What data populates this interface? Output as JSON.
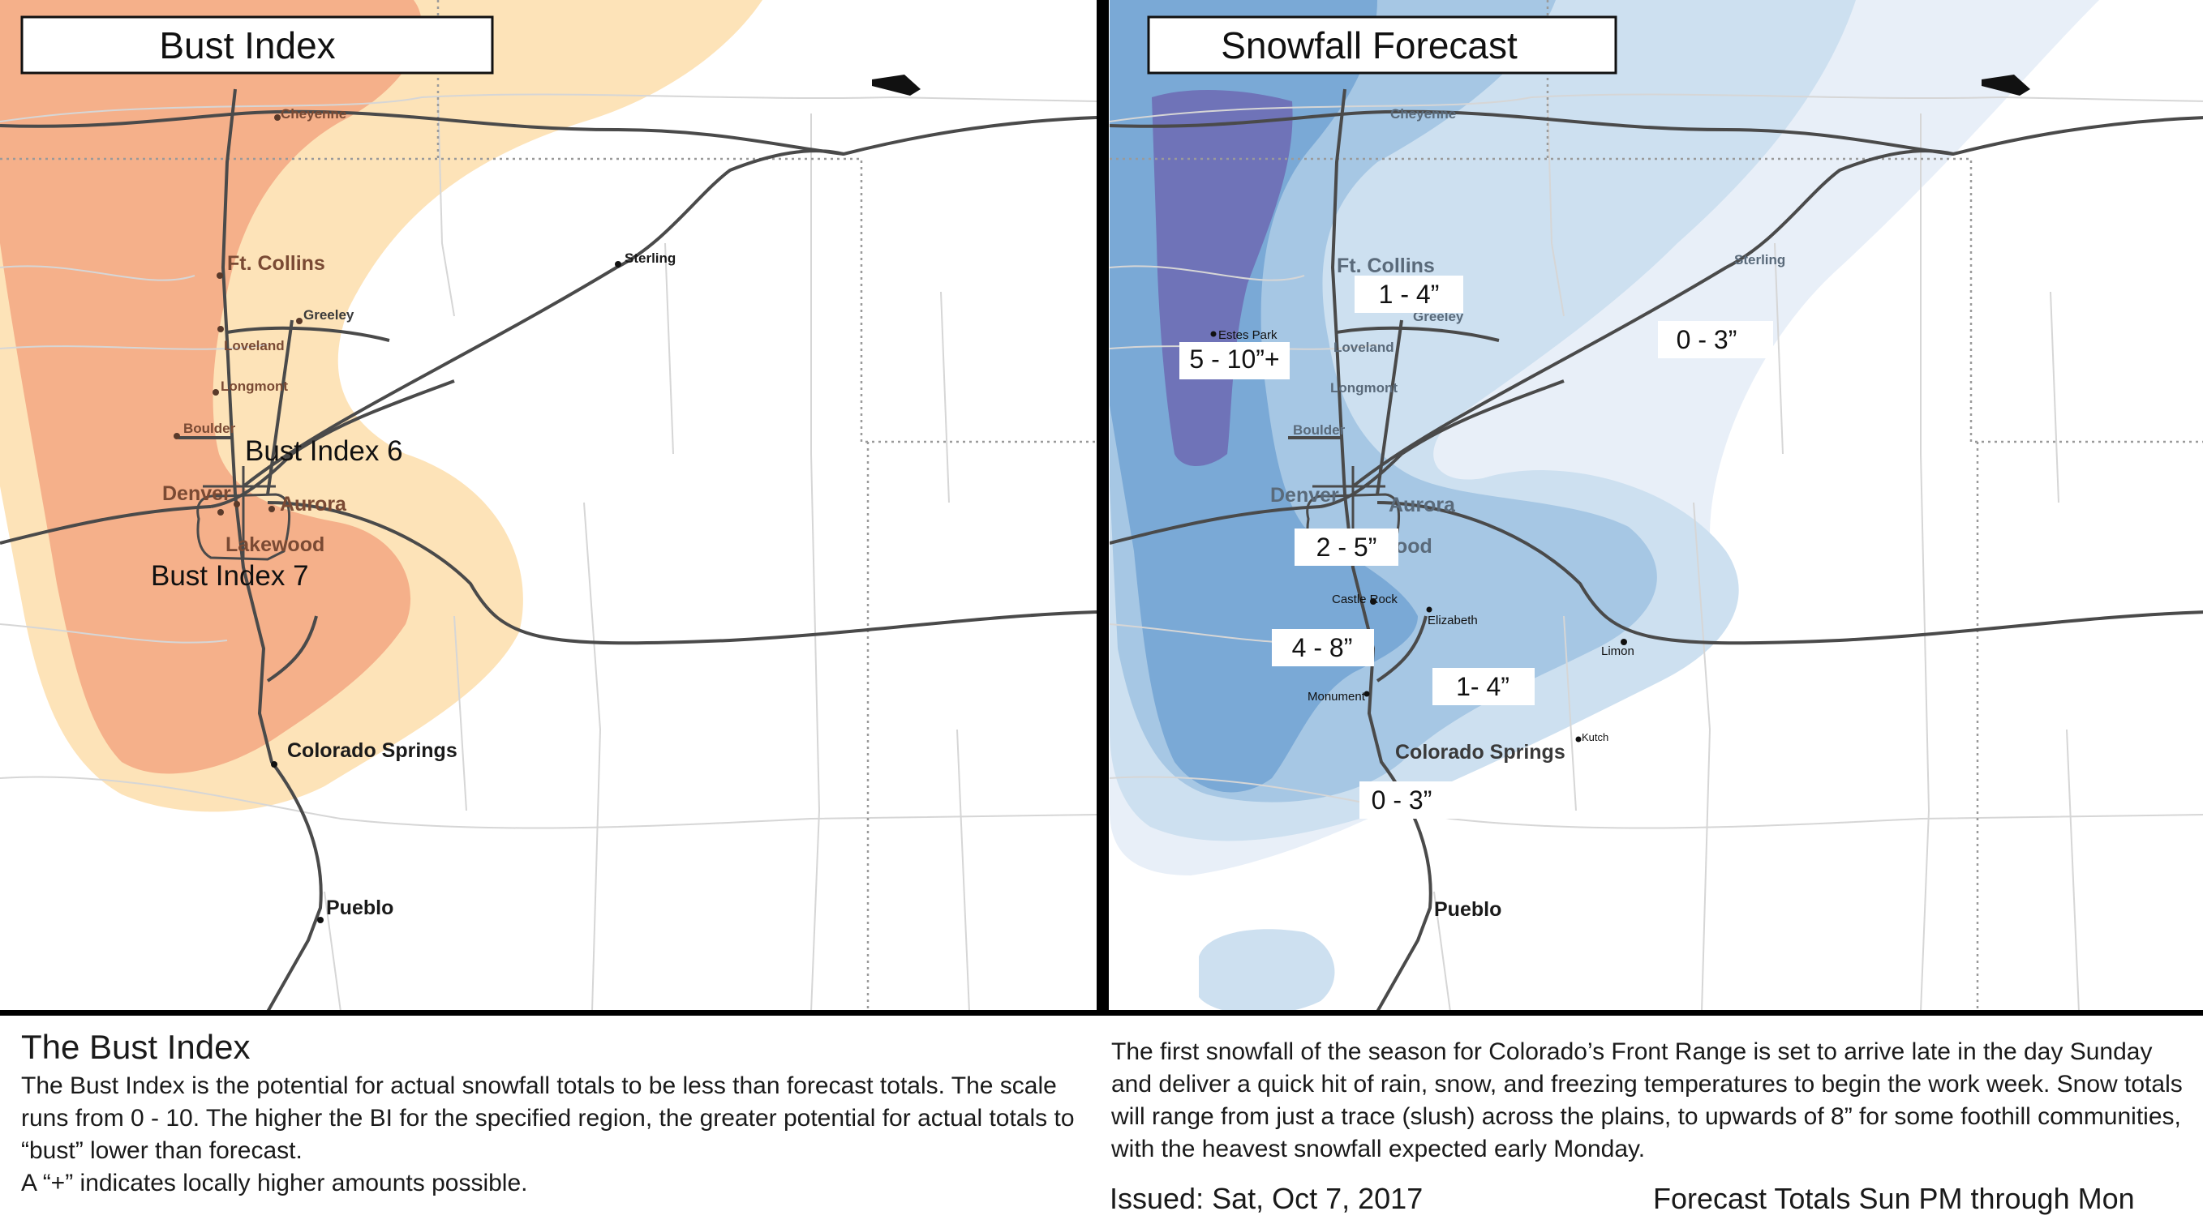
{
  "left_panel": {
    "title": "Bust Index",
    "zone_labels": [
      "Bust Index 6",
      "Bust Index 7"
    ],
    "colors": {
      "index_low": "#fde3b8",
      "index_high": "#f5b08a"
    }
  },
  "right_panel": {
    "title": "Snowfall Forecast",
    "amount_labels": [
      "1 - 4”",
      "0 - 3”",
      "5 - 10”+",
      "2 - 5”",
      "4 - 8”",
      "1- 4”",
      "0 - 3”"
    ],
    "colors": {
      "band_1": "#e8eff8",
      "band_2": "#cde0f0",
      "band_3": "#a6c7e4",
      "band_4": "#7aa9d6",
      "band_5": "#6f73b8"
    }
  },
  "cities": {
    "cheyenne": "Cheyenne",
    "ft_collins": "Ft. Collins",
    "greeley": "Greeley",
    "loveland": "Loveland",
    "longmont": "Longmont",
    "boulder": "Boulder",
    "denver": "Denver",
    "aurora": "Aurora",
    "lakewood": "Lakewood",
    "sterling": "Sterling",
    "colorado_springs": "Colorado Springs",
    "pueblo": "Pueblo",
    "estes_park": "Estes Park",
    "castle_rock": "Castle Rock",
    "elizabeth": "Elizabeth",
    "limon": "Limon",
    "monument": "Monument",
    "kutch": "Kutch",
    "lakewood_partial": "ood"
  },
  "footer": {
    "heading": "The Bust Index",
    "body": "The Bust Index is the potential for actual snowfall totals to be less than forecast totals. The scale runs from 0 - 10. The higher the BI for the specified region, the greater potential for actual totals to “bust” lower than forecast.",
    "note": "A “+” indicates locally higher amounts possible.",
    "summary": "The first snowfall of the season for Colorado’s Front Range is  set to arrive late in the day Sunday and deliver a quick hit of rain, snow, and freezing temperatures to begin the work week. Snow totals will range from just a trace (slush) across the plains, to upwards of 8” for some foothill communities, with the heavest snowfall expected early Monday.",
    "issued": "Issued: Sat, Oct 7, 2017",
    "valid": "Forecast Totals Sun PM through Mon"
  }
}
